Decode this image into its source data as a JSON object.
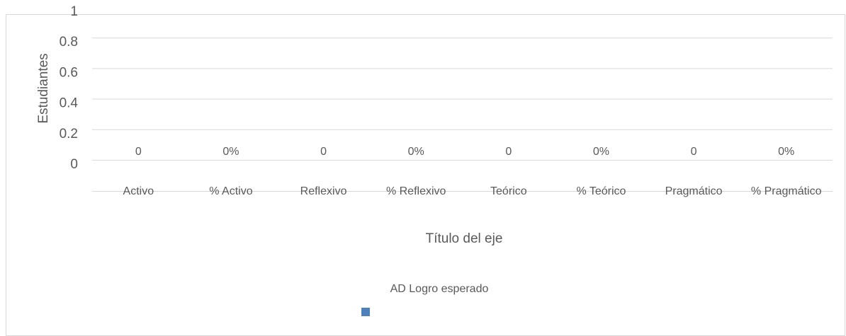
{
  "chart_data": {
    "type": "bar",
    "categories": [
      "Activo",
      "% Activo",
      "Reflexivo",
      "% Reflexivo",
      "Teórico",
      "% Teórico",
      "Pragmático",
      "% Pragmático"
    ],
    "series": [
      {
        "name": "AD Logro esperado",
        "color": "#4f81bd",
        "values": [
          0,
          0,
          0,
          0,
          0,
          0,
          0,
          0
        ],
        "value_labels": [
          "0",
          "0%",
          "0",
          "0%",
          "0",
          "0%",
          "0",
          "0%"
        ]
      }
    ],
    "ylim": [
      0,
      1
    ],
    "yticks": [
      0,
      0.2,
      0.4,
      0.6,
      0.8,
      1
    ],
    "grid": true,
    "y_label": "Estudiantes",
    "x_label": "Título del eje",
    "legend": "bottom"
  }
}
